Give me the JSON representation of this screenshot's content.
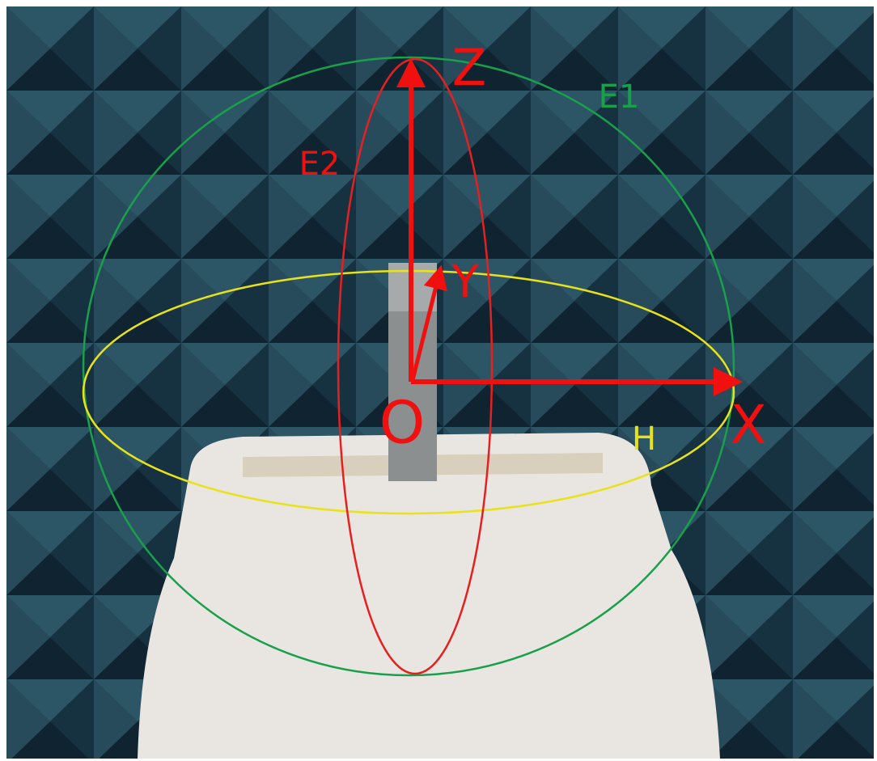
{
  "axes": [
    {
      "label": "Z"
    },
    {
      "label": "Y"
    },
    {
      "label": "X"
    }
  ],
  "origin": {
    "label": "O"
  },
  "cuts": [
    {
      "label": "E1"
    },
    {
      "label": "E2"
    },
    {
      "label": "H"
    }
  ]
}
